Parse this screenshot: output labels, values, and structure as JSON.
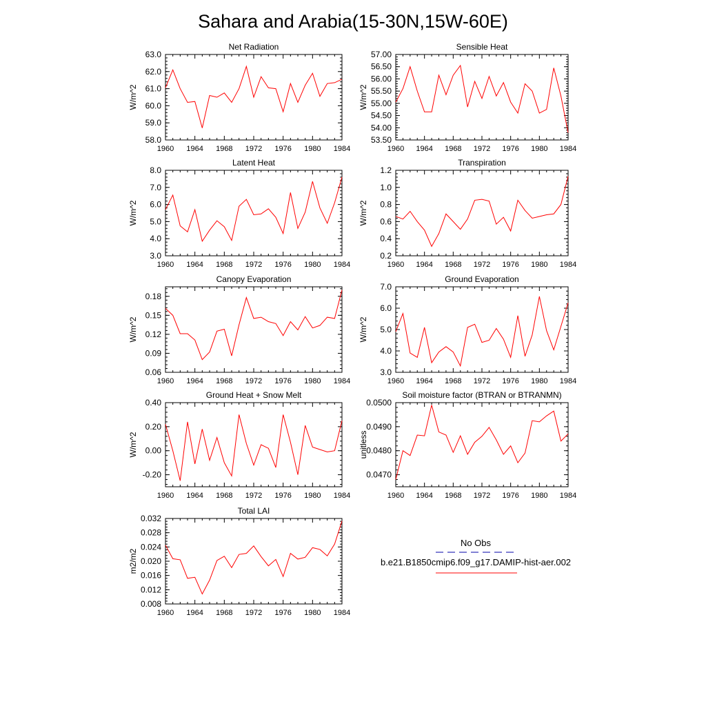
{
  "figure_title": "Sahara and Arabia(15-30N,15W-60E)",
  "colors": {
    "model_line": "#ff0000",
    "obs_line": "#0000aa",
    "axis": "#000000"
  },
  "legend": {
    "obs_label": "No Obs",
    "model_label": "b.e21.B1850cmip6.f09_g17.DAMIP-hist-aer.002"
  },
  "chart_data": [
    {
      "type": "line",
      "title": "Net Radiation",
      "ylabel": "W/m^2",
      "xlim": [
        1960,
        1984
      ],
      "ylim": [
        58.0,
        63.0
      ],
      "xticks": [
        "1960",
        "1964",
        "1968",
        "1972",
        "1976",
        "1980",
        "1984"
      ],
      "yticks": [
        "58.0",
        "59.0",
        "60.0",
        "61.0",
        "62.0",
        "63.0"
      ],
      "x": [
        1960,
        1961,
        1962,
        1963,
        1964,
        1965,
        1966,
        1967,
        1968,
        1969,
        1970,
        1971,
        1972,
        1973,
        1974,
        1975,
        1976,
        1977,
        1978,
        1979,
        1980,
        1981,
        1982,
        1983,
        1984
      ],
      "values": [
        61.05,
        62.1,
        61.0,
        60.2,
        60.25,
        58.7,
        60.6,
        60.5,
        60.75,
        60.2,
        61.0,
        62.3,
        60.5,
        61.7,
        61.05,
        61.0,
        59.65,
        61.3,
        60.2,
        61.2,
        61.9,
        60.55,
        61.3,
        61.35,
        61.55
      ]
    },
    {
      "type": "line",
      "title": "Sensible Heat",
      "ylabel": "W/m^2",
      "xlim": [
        1960,
        1984
      ],
      "ylim": [
        53.5,
        57.0
      ],
      "xticks": [
        "1960",
        "1964",
        "1968",
        "1972",
        "1976",
        "1980",
        "1984"
      ],
      "yticks": [
        "53.50",
        "54.00",
        "54.50",
        "55.00",
        "55.50",
        "56.00",
        "56.50",
        "57.00"
      ],
      "x": [
        1960,
        1961,
        1962,
        1963,
        1964,
        1965,
        1966,
        1967,
        1968,
        1969,
        1970,
        1971,
        1972,
        1973,
        1974,
        1975,
        1976,
        1977,
        1978,
        1979,
        1980,
        1981,
        1982,
        1983,
        1984
      ],
      "values": [
        55.05,
        55.6,
        56.5,
        55.5,
        54.65,
        54.65,
        56.15,
        55.35,
        56.15,
        56.55,
        54.85,
        55.9,
        55.2,
        56.1,
        55.3,
        55.85,
        55.05,
        54.6,
        55.8,
        55.5,
        54.6,
        54.75,
        56.45,
        55.3,
        53.8
      ]
    },
    {
      "type": "line",
      "title": "Latent Heat",
      "ylabel": "W/m^2",
      "xlim": [
        1960,
        1984
      ],
      "ylim": [
        3.0,
        8.0
      ],
      "xticks": [
        "1960",
        "1964",
        "1968",
        "1972",
        "1976",
        "1980",
        "1984"
      ],
      "yticks": [
        "3.0",
        "4.0",
        "5.0",
        "6.0",
        "7.0",
        "8.0"
      ],
      "x": [
        1960,
        1961,
        1962,
        1963,
        1964,
        1965,
        1966,
        1967,
        1968,
        1969,
        1970,
        1971,
        1972,
        1973,
        1974,
        1975,
        1976,
        1977,
        1978,
        1979,
        1980,
        1981,
        1982,
        1983,
        1984
      ],
      "values": [
        5.7,
        6.55,
        4.75,
        4.4,
        5.7,
        3.85,
        4.5,
        5.05,
        4.7,
        3.9,
        5.9,
        6.3,
        5.4,
        5.45,
        5.75,
        5.25,
        4.3,
        6.7,
        4.6,
        5.55,
        7.35,
        5.8,
        4.9,
        6.1,
        7.6
      ]
    },
    {
      "type": "line",
      "title": "Transpiration",
      "ylabel": "W/m^2",
      "xlim": [
        1960,
        1984
      ],
      "ylim": [
        0.2,
        1.2
      ],
      "xticks": [
        "1960",
        "1964",
        "1968",
        "1972",
        "1976",
        "1980",
        "1984"
      ],
      "yticks": [
        "0.2",
        "0.4",
        "0.6",
        "0.8",
        "1.0",
        "1.2"
      ],
      "x": [
        1960,
        1961,
        1962,
        1963,
        1964,
        1965,
        1966,
        1967,
        1968,
        1969,
        1970,
        1971,
        1972,
        1973,
        1974,
        1975,
        1976,
        1977,
        1978,
        1979,
        1980,
        1981,
        1982,
        1983,
        1984
      ],
      "values": [
        0.66,
        0.63,
        0.72,
        0.6,
        0.5,
        0.31,
        0.46,
        0.69,
        0.6,
        0.51,
        0.63,
        0.85,
        0.86,
        0.84,
        0.57,
        0.65,
        0.49,
        0.85,
        0.73,
        0.64,
        0.66,
        0.68,
        0.69,
        0.8,
        1.13
      ]
    },
    {
      "type": "line",
      "title": "Canopy Evaporation",
      "ylabel": "W/m^2",
      "xlim": [
        1960,
        1984
      ],
      "ylim": [
        0.06,
        0.195
      ],
      "xticks": [
        "1960",
        "1964",
        "1968",
        "1972",
        "1976",
        "1980",
        "1984"
      ],
      "yticks": [
        "0.06",
        "0.09",
        "0.12",
        "0.15",
        "0.18"
      ],
      "x": [
        1960,
        1961,
        1962,
        1963,
        1964,
        1965,
        1966,
        1967,
        1968,
        1969,
        1970,
        1971,
        1972,
        1973,
        1974,
        1975,
        1976,
        1977,
        1978,
        1979,
        1980,
        1981,
        1982,
        1983,
        1984
      ],
      "values": [
        0.161,
        0.15,
        0.121,
        0.121,
        0.111,
        0.08,
        0.092,
        0.125,
        0.128,
        0.086,
        0.135,
        0.178,
        0.145,
        0.147,
        0.14,
        0.137,
        0.118,
        0.14,
        0.127,
        0.148,
        0.13,
        0.134,
        0.147,
        0.145,
        0.19
      ]
    },
    {
      "type": "line",
      "title": "Ground Evaporation",
      "ylabel": "W/m^2",
      "xlim": [
        1960,
        1984
      ],
      "ylim": [
        3.0,
        7.0
      ],
      "xticks": [
        "1960",
        "1964",
        "1968",
        "1972",
        "1976",
        "1980",
        "1984"
      ],
      "yticks": [
        "3.0",
        "4.0",
        "5.0",
        "6.0",
        "7.0"
      ],
      "x": [
        1960,
        1961,
        1962,
        1963,
        1964,
        1965,
        1966,
        1967,
        1968,
        1969,
        1970,
        1971,
        1972,
        1973,
        1974,
        1975,
        1976,
        1977,
        1978,
        1979,
        1980,
        1981,
        1982,
        1983,
        1984
      ],
      "values": [
        4.9,
        5.75,
        3.9,
        3.7,
        5.1,
        3.45,
        3.95,
        4.2,
        3.95,
        3.3,
        5.1,
        5.25,
        4.4,
        4.5,
        5.05,
        4.55,
        3.7,
        5.65,
        3.75,
        4.75,
        6.55,
        4.95,
        4.05,
        5.15,
        6.25
      ]
    },
    {
      "type": "line",
      "title": "Ground Heat + Snow Melt",
      "ylabel": "W/m^2",
      "xlim": [
        1960,
        1984
      ],
      "ylim": [
        -0.3,
        0.4
      ],
      "xticks": [
        "1960",
        "1964",
        "1968",
        "1972",
        "1976",
        "1980",
        "1984"
      ],
      "yticks": [
        "-0.20",
        "0.00",
        "0.20",
        "0.40"
      ],
      "x": [
        1960,
        1961,
        1962,
        1963,
        1964,
        1965,
        1966,
        1967,
        1968,
        1969,
        1970,
        1971,
        1972,
        1973,
        1974,
        1975,
        1976,
        1977,
        1978,
        1979,
        1980,
        1981,
        1982,
        1983,
        1984
      ],
      "values": [
        0.22,
        0.0,
        -0.25,
        0.24,
        -0.11,
        0.18,
        -0.08,
        0.11,
        -0.1,
        -0.21,
        0.3,
        0.06,
        -0.12,
        0.05,
        0.02,
        -0.14,
        0.3,
        0.07,
        -0.2,
        0.21,
        0.03,
        0.01,
        -0.01,
        0.0,
        0.25
      ]
    },
    {
      "type": "line",
      "title": "Soil moisture factor (BTRAN or BTRANMN)",
      "ylabel": "unitless",
      "xlim": [
        1960,
        1984
      ],
      "ylim": [
        0.0465,
        0.05
      ],
      "xticks": [
        "1960",
        "1964",
        "1968",
        "1972",
        "1976",
        "1980",
        "1984"
      ],
      "yticks": [
        "0.0470",
        "0.0480",
        "0.0490",
        "0.0500"
      ],
      "x": [
        1960,
        1961,
        1962,
        1963,
        1964,
        1965,
        1966,
        1967,
        1968,
        1969,
        1970,
        1971,
        1972,
        1973,
        1974,
        1975,
        1976,
        1977,
        1978,
        1979,
        1980,
        1981,
        1982,
        1983,
        1984
      ],
      "values": [
        0.0468,
        0.048,
        0.0478,
        0.04865,
        0.04862,
        0.0499,
        0.04878,
        0.04865,
        0.04793,
        0.04862,
        0.04785,
        0.04835,
        0.0486,
        0.04897,
        0.04845,
        0.04785,
        0.0482,
        0.0475,
        0.0479,
        0.04925,
        0.0492,
        0.04945,
        0.04965,
        0.0484,
        0.0487
      ]
    },
    {
      "type": "line",
      "title": "Total LAI",
      "ylabel": "m2/m2",
      "xlim": [
        1960,
        1984
      ],
      "ylim": [
        0.008,
        0.032
      ],
      "xticks": [
        "1960",
        "1964",
        "1968",
        "1972",
        "1976",
        "1980",
        "1984"
      ],
      "yticks": [
        "0.008",
        "0.012",
        "0.016",
        "0.020",
        "0.024",
        "0.028",
        "0.032"
      ],
      "x": [
        1960,
        1961,
        1962,
        1963,
        1964,
        1965,
        1966,
        1967,
        1968,
        1969,
        1970,
        1971,
        1972,
        1973,
        1974,
        1975,
        1976,
        1977,
        1978,
        1979,
        1980,
        1981,
        1982,
        1983,
        1984
      ],
      "values": [
        0.0245,
        0.0207,
        0.0204,
        0.0152,
        0.0155,
        0.0108,
        0.0147,
        0.0202,
        0.0214,
        0.0182,
        0.0219,
        0.0222,
        0.0243,
        0.0213,
        0.0187,
        0.0205,
        0.0157,
        0.0222,
        0.0206,
        0.0211,
        0.0238,
        0.0233,
        0.0215,
        0.0248,
        0.0313
      ]
    }
  ]
}
